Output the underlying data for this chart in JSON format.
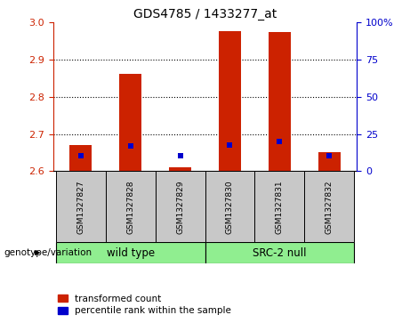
{
  "title": "GDS4785 / 1433277_at",
  "samples": [
    "GSM1327827",
    "GSM1327828",
    "GSM1327829",
    "GSM1327830",
    "GSM1327831",
    "GSM1327832"
  ],
  "red_values": [
    2.671,
    2.862,
    2.61,
    2.976,
    2.975,
    2.651
  ],
  "blue_values": [
    2.641,
    2.668,
    2.642,
    2.671,
    2.68,
    2.642
  ],
  "baseline": 2.6,
  "ylim": [
    2.6,
    3.0
  ],
  "yticks_left": [
    2.6,
    2.7,
    2.8,
    2.9,
    3.0
  ],
  "yticks_right": [
    0,
    25,
    50,
    75,
    100
  ],
  "group_label": "genotype/variation",
  "bar_color": "#CC2200",
  "blue_color": "#0000CC",
  "bg_color": "#FFFFFF",
  "left_tick_color": "#CC2200",
  "right_tick_color": "#0000CC",
  "legend_red_label": "transformed count",
  "legend_blue_label": "percentile rank within the sample",
  "bar_width": 0.45,
  "groups": [
    {
      "label": "wild type",
      "indices": [
        0,
        1,
        2
      ],
      "color": "#90EE90"
    },
    {
      "label": "SRC-2 null",
      "indices": [
        3,
        4,
        5
      ],
      "color": "#90EE90"
    }
  ],
  "sample_box_color": "#C8C8C8",
  "grid_yticks": [
    2.7,
    2.8,
    2.9
  ]
}
